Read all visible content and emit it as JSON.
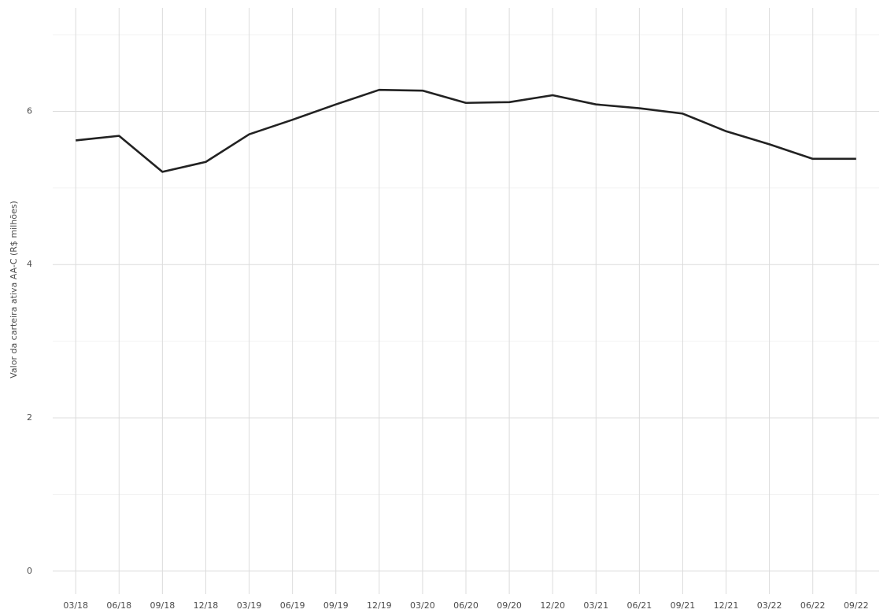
{
  "chart_data": {
    "type": "line",
    "y_label": "Valor da carteira ativa AA-C (R$ milhões)",
    "categories": [
      "03/18",
      "06/18",
      "09/18",
      "12/18",
      "03/19",
      "06/19",
      "09/19",
      "12/19",
      "03/20",
      "06/20",
      "09/20",
      "12/20",
      "03/21",
      "06/21",
      "09/21",
      "12/21",
      "03/22",
      "06/22",
      "09/22"
    ],
    "series": [
      {
        "color": "#222222",
        "values": [
          5.62,
          5.68,
          5.21,
          5.34,
          5.7,
          5.89,
          6.09,
          6.28,
          6.27,
          6.11,
          6.12,
          6.21,
          6.09,
          6.04,
          5.97,
          5.74,
          5.57,
          5.38,
          5.38
        ]
      }
    ],
    "ylim": [
      -0.3,
      7.35
    ],
    "yticks": [
      0,
      2,
      4,
      6
    ],
    "y_minor_grid": [
      1,
      3,
      5,
      7
    ],
    "grid": true
  }
}
